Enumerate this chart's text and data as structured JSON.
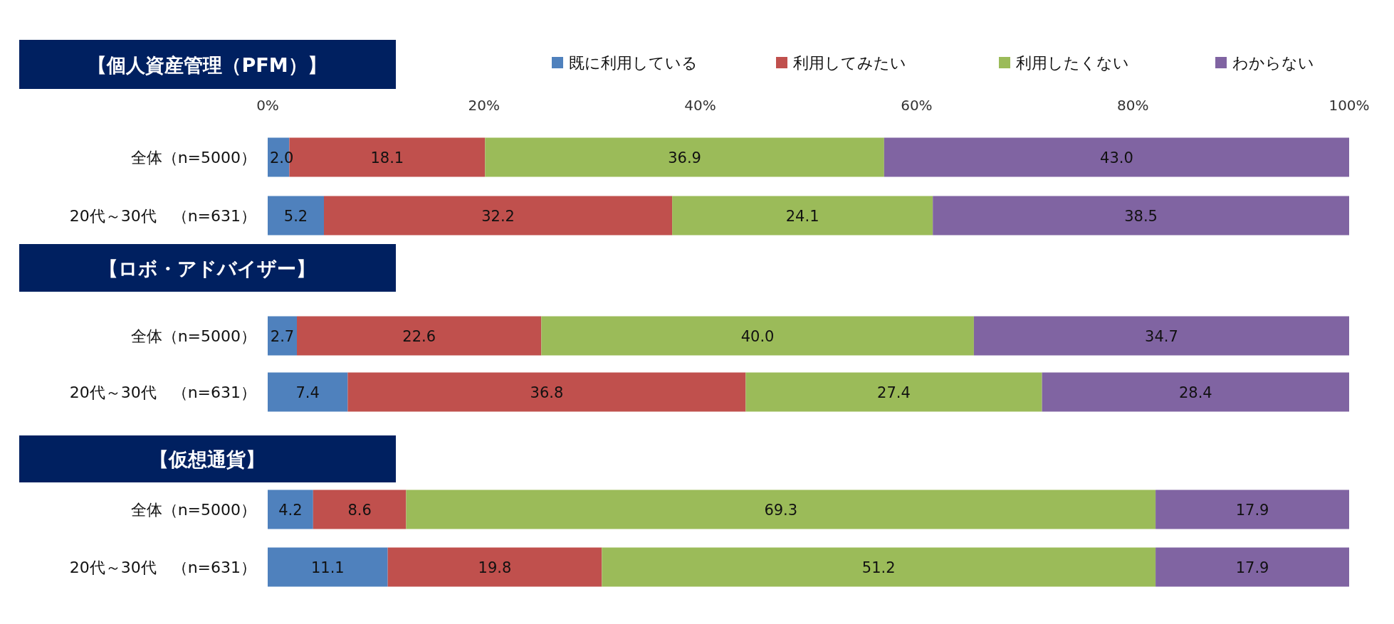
{
  "chart_data": [
    {
      "type": "bar",
      "title": "【個人資産管理（PFM）】",
      "orientation": "horizontal",
      "stacked": true,
      "legend": "top",
      "categories": [
        "全体（n=5000）",
        "20代～30代　（n=631）"
      ],
      "xlim": [
        0,
        100
      ],
      "xticks": [
        {
          "value": 0,
          "label": "0%"
        },
        {
          "value": 20,
          "label": "20%"
        },
        {
          "value": 40,
          "label": "40%"
        },
        {
          "value": 60,
          "label": "60%"
        },
        {
          "value": 80,
          "label": "80%"
        },
        {
          "value": 100,
          "label": "100%"
        }
      ],
      "series": [
        {
          "name": "既に利用している",
          "color": "#4f81bd",
          "values": [
            2.0,
            5.2
          ],
          "value_labels": [
            "2.0",
            "5.2"
          ]
        },
        {
          "name": "利用してみたい",
          "color": "#c0504d",
          "values": [
            18.1,
            32.2
          ],
          "value_labels": [
            "18.1",
            "32.2"
          ]
        },
        {
          "name": "利用したくない",
          "color": "#9bbb59",
          "values": [
            36.9,
            24.1
          ],
          "value_labels": [
            "36.9",
            "24.1"
          ]
        },
        {
          "name": "わからない",
          "color": "#8064a2",
          "values": [
            43.0,
            38.5
          ],
          "value_labels": [
            "43.0",
            "38.5"
          ]
        }
      ]
    },
    {
      "type": "bar",
      "title": "【ロボ・アドバイザー】",
      "orientation": "horizontal",
      "stacked": true,
      "tick_labels": "y",
      "categories": [
        "全体（n=5000）",
        "20代～30代　（n=631）"
      ],
      "xlim": [
        0,
        100
      ],
      "series": [
        {
          "color": "#4f81bd",
          "values": [
            2.7,
            7.4
          ],
          "value_labels": [
            "2.7",
            "7.4"
          ]
        },
        {
          "color": "#c0504d",
          "values": [
            22.6,
            36.8
          ],
          "value_labels": [
            "22.6",
            "36.8"
          ]
        },
        {
          "color": "#9bbb59",
          "values": [
            40.0,
            27.4
          ],
          "value_labels": [
            "40.0",
            "27.4"
          ]
        },
        {
          "color": "#8064a2",
          "values": [
            34.7,
            28.4
          ],
          "value_labels": [
            "34.7",
            "28.4"
          ]
        }
      ]
    },
    {
      "type": "bar",
      "title": "【仮想通貨】",
      "orientation": "horizontal",
      "stacked": true,
      "tick_labels": "y",
      "categories": [
        "全体（n=5000）",
        "20代～30代　（n=631）"
      ],
      "xlim": [
        0,
        100
      ],
      "series": [
        {
          "color": "#4f81bd",
          "values": [
            4.2,
            11.1
          ],
          "value_labels": [
            "4.2",
            "11.1"
          ]
        },
        {
          "color": "#c0504d",
          "values": [
            8.6,
            19.8
          ],
          "value_labels": [
            "8.6",
            "19.8"
          ]
        },
        {
          "color": "#9bbb59",
          "values": [
            69.3,
            51.2
          ],
          "value_labels": [
            "69.3",
            "51.2"
          ]
        },
        {
          "color": "#8064a2",
          "values": [
            17.9,
            17.9
          ],
          "value_labels": [
            "17.9",
            "17.9"
          ]
        }
      ]
    }
  ]
}
